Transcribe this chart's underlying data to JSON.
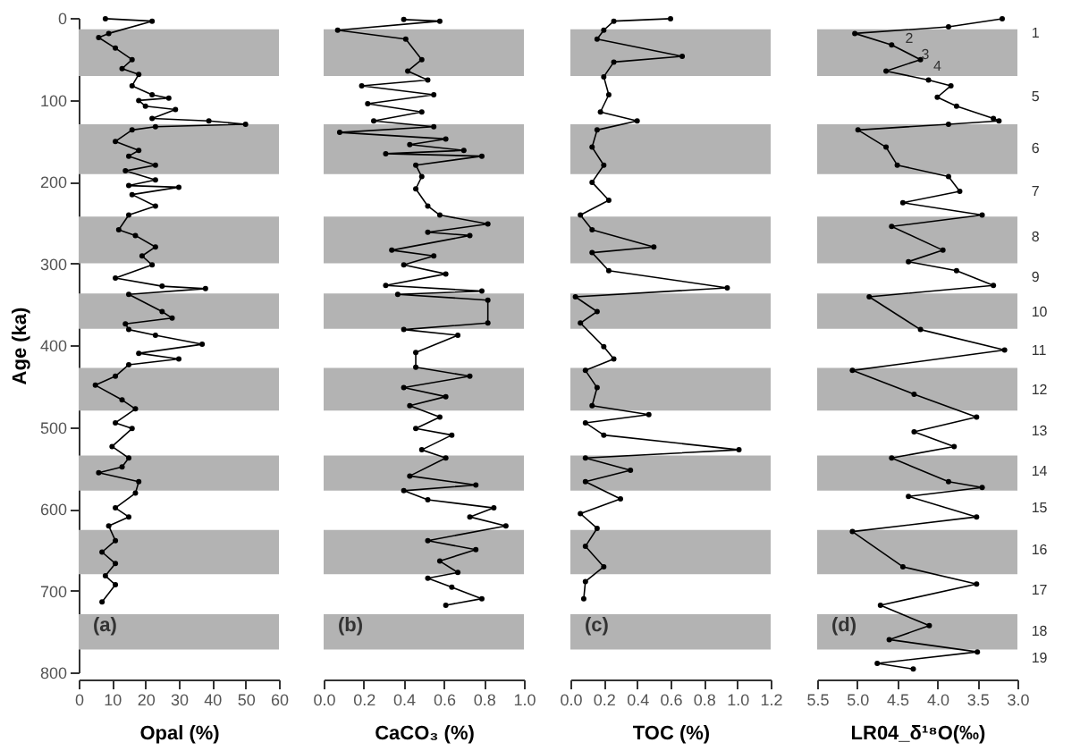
{
  "chart_data": [
    {
      "type": "line",
      "xlabel": "Opal (%)",
      "ylabel": "Age (ka)",
      "marker": "circle",
      "color": "#000000",
      "x": [
        8,
        22,
        9,
        6,
        11,
        16,
        13,
        18,
        16,
        22,
        27,
        18,
        20,
        29,
        22,
        39,
        50,
        23,
        16,
        11,
        18,
        15,
        23,
        14,
        23,
        15,
        30,
        16,
        23,
        15,
        12,
        17,
        23,
        19,
        22,
        11,
        25,
        38,
        15,
        25,
        28,
        14,
        15,
        23,
        37,
        18,
        30,
        15,
        11,
        5,
        13,
        17,
        11,
        16,
        10,
        15,
        13,
        6,
        18,
        17,
        11,
        15,
        9,
        11,
        7,
        11,
        8,
        11,
        7
      ],
      "values": [
        1,
        4,
        19,
        24,
        37,
        51,
        62,
        69,
        83,
        94,
        98,
        101,
        108,
        112,
        123,
        126,
        130,
        133,
        137,
        151,
        162,
        169,
        180,
        187,
        198,
        205,
        207,
        216,
        230,
        241,
        259,
        266,
        280,
        291,
        302,
        318,
        328,
        331,
        338,
        359,
        367,
        374,
        381,
        388,
        399,
        410,
        417,
        424,
        438,
        449,
        467,
        478,
        495,
        502,
        524,
        538,
        549,
        556,
        567,
        581,
        599,
        610,
        621,
        639,
        653,
        667,
        682,
        693,
        714
      ],
      "xlim": [
        0,
        60
      ],
      "xticks": [
        0,
        10,
        20,
        30,
        40,
        50,
        60
      ],
      "ylim": [
        800,
        0
      ],
      "yticks": [
        0,
        100,
        200,
        300,
        400,
        500,
        600,
        700,
        800
      ],
      "bands": [
        {
          "axis": "y",
          "from": 14,
          "to": 71,
          "color": "#b3b3b3"
        },
        {
          "axis": "y",
          "from": 130,
          "to": 191,
          "color": "#b3b3b3"
        },
        {
          "axis": "y",
          "from": 243,
          "to": 300,
          "color": "#b3b3b3"
        },
        {
          "axis": "y",
          "from": 337,
          "to": 380,
          "color": "#b3b3b3"
        },
        {
          "axis": "y",
          "from": 428,
          "to": 480,
          "color": "#b3b3b3"
        },
        {
          "axis": "y",
          "from": 535,
          "to": 578,
          "color": "#b3b3b3"
        },
        {
          "axis": "y",
          "from": 626,
          "to": 680,
          "color": "#b3b3b3"
        },
        {
          "axis": "y",
          "from": 729,
          "to": 772,
          "color": "#b3b3b3"
        }
      ],
      "annotations": [
        "(a)"
      ]
    },
    {
      "type": "line",
      "xlabel": "CaCO₃ (%)",
      "marker": "circle",
      "color": "#000000",
      "tick_labels": "x",
      "x": [
        0.4,
        0.58,
        0.07,
        0.41,
        0.49,
        0.42,
        0.52,
        0.19,
        0.55,
        0.22,
        0.49,
        0.25,
        0.55,
        0.08,
        0.61,
        0.43,
        0.7,
        0.31,
        0.79,
        0.46,
        0.49,
        0.46,
        0.52,
        0.58,
        0.82,
        0.52,
        0.73,
        0.34,
        0.55,
        0.4,
        0.61,
        0.31,
        0.79,
        0.37,
        0.82,
        0.82,
        0.4,
        0.67,
        0.46,
        0.46,
        0.73,
        0.4,
        0.61,
        0.43,
        0.58,
        0.46,
        0.64,
        0.49,
        0.61,
        0.43,
        0.76,
        0.4,
        0.52,
        0.85,
        0.73,
        0.91,
        0.52,
        0.76,
        0.58,
        0.67,
        0.52,
        0.64,
        0.79,
        0.61
      ],
      "values": [
        2,
        4,
        15,
        26,
        51,
        65,
        76,
        83,
        94,
        105,
        115,
        126,
        133,
        140,
        148,
        155,
        162,
        166,
        169,
        180,
        194,
        209,
        230,
        241,
        252,
        262,
        266,
        284,
        291,
        302,
        313,
        327,
        334,
        338,
        345,
        373,
        381,
        388,
        409,
        427,
        438,
        452,
        463,
        474,
        488,
        502,
        510,
        528,
        538,
        560,
        571,
        578,
        589,
        599,
        610,
        621,
        639,
        650,
        664,
        678,
        685,
        696,
        710,
        718
      ],
      "xlim": [
        0,
        1
      ],
      "xticks": [
        {
          "value": 0,
          "label": "0.0"
        },
        {
          "value": 0.2,
          "label": "0.2"
        },
        {
          "value": 0.4,
          "label": "0.4"
        },
        {
          "value": 0.6,
          "label": "0.6"
        },
        {
          "value": 0.8,
          "label": "0.8"
        },
        {
          "value": 1,
          "label": "1.0"
        }
      ],
      "ylim": [
        800,
        0
      ],
      "yticks": [
        0,
        100,
        200,
        300,
        400,
        500,
        600,
        700,
        800
      ],
      "bands": [
        {
          "axis": "y",
          "from": 14,
          "to": 71,
          "color": "#b3b3b3"
        },
        {
          "axis": "y",
          "from": 130,
          "to": 191,
          "color": "#b3b3b3"
        },
        {
          "axis": "y",
          "from": 243,
          "to": 300,
          "color": "#b3b3b3"
        },
        {
          "axis": "y",
          "from": 337,
          "to": 380,
          "color": "#b3b3b3"
        },
        {
          "axis": "y",
          "from": 428,
          "to": 480,
          "color": "#b3b3b3"
        },
        {
          "axis": "y",
          "from": 535,
          "to": 578,
          "color": "#b3b3b3"
        },
        {
          "axis": "y",
          "from": 626,
          "to": 680,
          "color": "#b3b3b3"
        },
        {
          "axis": "y",
          "from": 729,
          "to": 772,
          "color": "#b3b3b3"
        }
      ],
      "annotations": [
        "(b)"
      ]
    },
    {
      "type": "line",
      "xlabel": "TOC (%)",
      "marker": "circle",
      "color": "#000000",
      "tick_labels": "x",
      "x": [
        0.6,
        0.26,
        0.2,
        0.16,
        0.67,
        0.26,
        0.2,
        0.23,
        0.18,
        0.4,
        0.16,
        0.13,
        0.2,
        0.13,
        0.23,
        0.06,
        0.13,
        0.5,
        0.13,
        0.23,
        0.94,
        0.03,
        0.16,
        0.06,
        0.2,
        0.26,
        0.09,
        0.16,
        0.13,
        0.47,
        0.09,
        0.2,
        1.01,
        0.09,
        0.36,
        0.09,
        0.3,
        0.06,
        0.16,
        0.09,
        0.2,
        0.09,
        0.08
      ],
      "values": [
        1,
        4,
        15,
        26,
        47,
        54,
        72,
        94,
        115,
        126,
        137,
        158,
        180,
        201,
        223,
        241,
        259,
        280,
        287,
        309,
        330,
        341,
        359,
        373,
        402,
        417,
        431,
        452,
        474,
        485,
        495,
        510,
        528,
        538,
        553,
        567,
        588,
        606,
        624,
        646,
        671,
        689,
        710
      ],
      "xlim": [
        0,
        1.2
      ],
      "xticks": [
        {
          "value": 0,
          "label": "0.0"
        },
        {
          "value": 0.2,
          "label": "0.2"
        },
        {
          "value": 0.4,
          "label": "0.4"
        },
        {
          "value": 0.6,
          "label": "0.6"
        },
        {
          "value": 0.8,
          "label": "0.8"
        },
        {
          "value": 1,
          "label": "1.0"
        },
        {
          "value": 1.2,
          "label": "1.2"
        }
      ],
      "ylim": [
        800,
        0
      ],
      "yticks": [
        0,
        100,
        200,
        300,
        400,
        500,
        600,
        700,
        800
      ],
      "bands": [
        {
          "axis": "y",
          "from": 14,
          "to": 71,
          "color": "#b3b3b3"
        },
        {
          "axis": "y",
          "from": 130,
          "to": 191,
          "color": "#b3b3b3"
        },
        {
          "axis": "y",
          "from": 243,
          "to": 300,
          "color": "#b3b3b3"
        },
        {
          "axis": "y",
          "from": 337,
          "to": 380,
          "color": "#b3b3b3"
        },
        {
          "axis": "y",
          "from": 428,
          "to": 480,
          "color": "#b3b3b3"
        },
        {
          "axis": "y",
          "from": 535,
          "to": 578,
          "color": "#b3b3b3"
        },
        {
          "axis": "y",
          "from": 626,
          "to": 680,
          "color": "#b3b3b3"
        },
        {
          "axis": "y",
          "from": 729,
          "to": 772,
          "color": "#b3b3b3"
        }
      ],
      "annotations": [
        "(c)"
      ]
    },
    {
      "type": "line",
      "xlabel": "LR04_δ¹⁸O(‰)",
      "marker": "circle",
      "color": "#000000",
      "tick_labels": "x",
      "x": [
        3.19,
        3.86,
        5.03,
        4.57,
        4.21,
        4.64,
        4.11,
        3.83,
        4.0,
        3.76,
        3.3,
        3.23,
        3.86,
        4.99,
        4.64,
        4.5,
        3.86,
        3.72,
        4.43,
        3.44,
        4.57,
        3.93,
        4.36,
        3.76,
        3.3,
        4.85,
        4.21,
        3.16,
        5.06,
        4.29,
        3.51,
        4.29,
        3.79,
        4.57,
        3.86,
        3.44,
        4.36,
        3.51,
        5.06,
        4.43,
        3.51,
        4.71,
        4.1,
        4.6,
        3.5,
        4.75,
        4.3
      ],
      "values": [
        1,
        11,
        19,
        33,
        51,
        65,
        76,
        83,
        97,
        108,
        123,
        126,
        130,
        137,
        158,
        180,
        194,
        212,
        226,
        241,
        255,
        284,
        298,
        309,
        327,
        341,
        381,
        406,
        431,
        460,
        488,
        506,
        524,
        538,
        567,
        574,
        585,
        610,
        628,
        671,
        692,
        718,
        743,
        760,
        775,
        789,
        796
      ],
      "xlim": [
        5.5,
        3.0
      ],
      "xticks": [
        {
          "value": 5.5,
          "label": "5.5"
        },
        {
          "value": 5,
          "label": "5.0"
        },
        {
          "value": 4.5,
          "label": "4.5"
        },
        {
          "value": 4,
          "label": "4.0"
        },
        {
          "value": 3.5,
          "label": "3.5"
        },
        {
          "value": 3,
          "label": "3.0"
        }
      ],
      "ylim": [
        800,
        0
      ],
      "yticks": [
        0,
        100,
        200,
        300,
        400,
        500,
        600,
        700,
        800
      ],
      "bands": [
        {
          "axis": "y",
          "from": 14,
          "to": 71,
          "color": "#b3b3b3"
        },
        {
          "axis": "y",
          "from": 130,
          "to": 191,
          "color": "#b3b3b3"
        },
        {
          "axis": "y",
          "from": 243,
          "to": 300,
          "color": "#b3b3b3"
        },
        {
          "axis": "y",
          "from": 337,
          "to": 380,
          "color": "#b3b3b3"
        },
        {
          "axis": "y",
          "from": 428,
          "to": 480,
          "color": "#b3b3b3"
        },
        {
          "axis": "y",
          "from": 535,
          "to": 578,
          "color": "#b3b3b3"
        },
        {
          "axis": "y",
          "from": 626,
          "to": 680,
          "color": "#b3b3b3"
        },
        {
          "axis": "y",
          "from": 729,
          "to": 772,
          "color": "#b3b3b3"
        }
      ],
      "annotations": [
        "(d)",
        "1",
        "2",
        "3",
        "4",
        "5",
        "6",
        "7",
        "8",
        "9",
        "10",
        "11",
        "12",
        "13",
        "14",
        "15",
        "16",
        "17",
        "18",
        "19"
      ]
    }
  ]
}
